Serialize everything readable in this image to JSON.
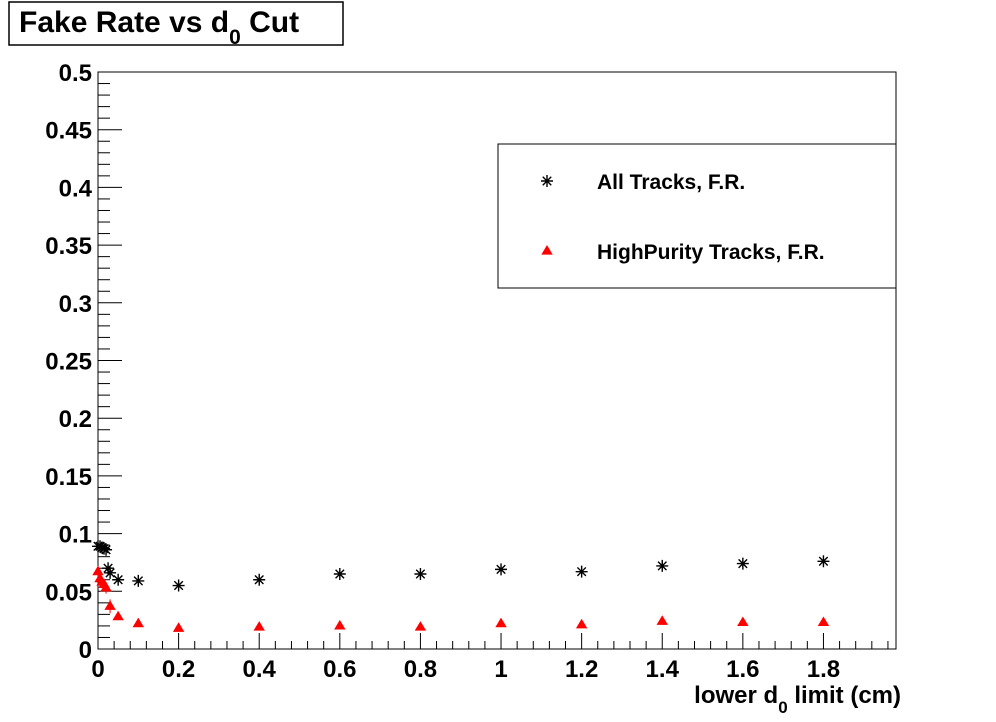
{
  "chart_data": {
    "type": "scatter",
    "title": {
      "main": "Fake Rate vs d",
      "sub": "0",
      "tail": " Cut"
    },
    "xlabel": {
      "main": "lower d",
      "sub": "0",
      "tail": " limit (cm)"
    },
    "ylabel": "",
    "xlim": [
      0,
      1.98
    ],
    "ylim": [
      0,
      0.5
    ],
    "x_ticks": [
      0,
      0.2,
      0.4,
      0.6,
      0.8,
      1,
      1.2,
      1.4,
      1.6,
      1.8
    ],
    "y_ticks": [
      0,
      0.05,
      0.1,
      0.15,
      0.2,
      0.25,
      0.3,
      0.35,
      0.4,
      0.45,
      0.5
    ],
    "grid": false,
    "legend_position": "top-right",
    "series": [
      {
        "name": "All Tracks, F.R.",
        "marker": "asterisk",
        "color": "#000000",
        "points": [
          {
            "x": 0.0,
            "y": 0.089,
            "err": 0.004
          },
          {
            "x": 0.005,
            "y": 0.089,
            "err": 0.004
          },
          {
            "x": 0.01,
            "y": 0.088,
            "err": 0.004
          },
          {
            "x": 0.015,
            "y": 0.087,
            "err": 0.004
          },
          {
            "x": 0.02,
            "y": 0.086,
            "err": 0.004
          },
          {
            "x": 0.025,
            "y": 0.07,
            "err": 0.004
          },
          {
            "x": 0.03,
            "y": 0.066,
            "err": 0.004
          },
          {
            "x": 0.05,
            "y": 0.06,
            "err": 0.003
          },
          {
            "x": 0.1,
            "y": 0.059,
            "err": 0.003
          },
          {
            "x": 0.2,
            "y": 0.055,
            "err": 0.003
          },
          {
            "x": 0.4,
            "y": 0.06,
            "err": 0.003
          },
          {
            "x": 0.6,
            "y": 0.065,
            "err": 0.003
          },
          {
            "x": 0.8,
            "y": 0.065,
            "err": 0.003
          },
          {
            "x": 1.0,
            "y": 0.069,
            "err": 0.003
          },
          {
            "x": 1.2,
            "y": 0.067,
            "err": 0.003
          },
          {
            "x": 1.4,
            "y": 0.072,
            "err": 0.003
          },
          {
            "x": 1.6,
            "y": 0.074,
            "err": 0.003
          },
          {
            "x": 1.8,
            "y": 0.076,
            "err": 0.003
          }
        ]
      },
      {
        "name": "HighPurity Tracks, F.R.",
        "marker": "triangle",
        "color": "#ff0000",
        "points": [
          {
            "x": 0.0,
            "y": 0.067,
            "err": 0.004
          },
          {
            "x": 0.005,
            "y": 0.061,
            "err": 0.004
          },
          {
            "x": 0.01,
            "y": 0.058,
            "err": 0.004
          },
          {
            "x": 0.015,
            "y": 0.056,
            "err": 0.004
          },
          {
            "x": 0.02,
            "y": 0.053,
            "err": 0.005
          },
          {
            "x": 0.03,
            "y": 0.037,
            "err": 0.006
          },
          {
            "x": 0.05,
            "y": 0.028,
            "err": 0.002
          },
          {
            "x": 0.1,
            "y": 0.022,
            "err": 0.002
          },
          {
            "x": 0.2,
            "y": 0.018,
            "err": 0.002
          },
          {
            "x": 0.4,
            "y": 0.019,
            "err": 0.002
          },
          {
            "x": 0.6,
            "y": 0.02,
            "err": 0.002
          },
          {
            "x": 0.8,
            "y": 0.019,
            "err": 0.002
          },
          {
            "x": 1.0,
            "y": 0.022,
            "err": 0.002
          },
          {
            "x": 1.2,
            "y": 0.021,
            "err": 0.002
          },
          {
            "x": 1.4,
            "y": 0.024,
            "err": 0.002
          },
          {
            "x": 1.6,
            "y": 0.023,
            "err": 0.002
          },
          {
            "x": 1.8,
            "y": 0.023,
            "err": 0.002
          }
        ]
      }
    ]
  }
}
